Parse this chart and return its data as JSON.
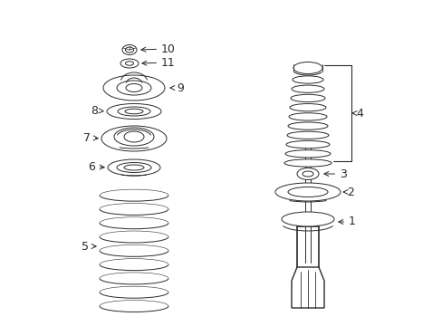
{
  "bg_color": "#ffffff",
  "line_color": "#2a2a2a",
  "figsize": [
    4.89,
    3.6
  ],
  "dpi": 100,
  "lw": 0.7,
  "xlim": [
    0,
    489
  ],
  "ylim": [
    0,
    360
  ]
}
